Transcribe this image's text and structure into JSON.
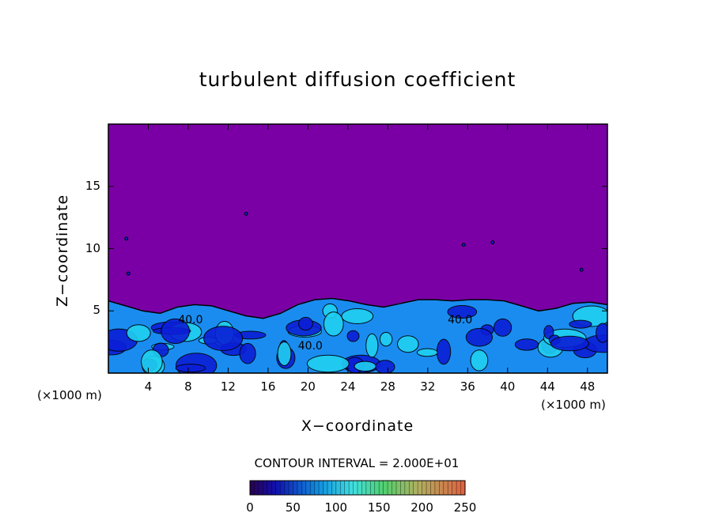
{
  "colors": {
    "background": "#ffffff",
    "field_top": "#7a00a6",
    "field_low": "#0b1fd6",
    "field_mid": "#1a8cf0",
    "field_high": "#20d0f0",
    "contour_line": "#000000"
  },
  "chart_data": {
    "type": "heatmap",
    "title": "turbulent diffusion coefficient",
    "xlabel": "X−coordinate",
    "ylabel": "Z−coordinate",
    "x_unit_left": "(×1000 m)",
    "x_unit_right": "(×1000 m)",
    "xlim": [
      0,
      50
    ],
    "ylim": [
      0,
      20
    ],
    "x_ticks": [
      4,
      8,
      12,
      16,
      20,
      24,
      28,
      32,
      36,
      40,
      44,
      48
    ],
    "y_ticks": [
      5,
      10,
      15
    ],
    "contour_interval_label": "CONTOUR INTERVAL = 2.000E+01",
    "contour_labels": [
      {
        "text": "40.0",
        "x": 7,
        "z": 4.0
      },
      {
        "text": "40.0",
        "x": 19,
        "z": 1.9
      },
      {
        "text": "40.0",
        "x": 34,
        "z": 4.0
      }
    ],
    "boundary_layer_top_km": [
      5.8,
      5.4,
      5.0,
      4.8,
      5.3,
      5.5,
      5.4,
      5.0,
      4.6,
      4.4,
      4.8,
      5.5,
      5.9,
      6.0,
      5.8,
      5.5,
      5.3,
      5.6,
      5.9,
      5.9,
      5.8,
      5.9,
      5.9,
      5.8,
      5.4,
      5.0,
      5.2,
      5.6,
      5.7,
      5.5
    ],
    "colorbar": {
      "range": [
        0,
        250
      ],
      "tick_labels": [
        0,
        50,
        100,
        150,
        200,
        250
      ]
    },
    "grid": false
  }
}
